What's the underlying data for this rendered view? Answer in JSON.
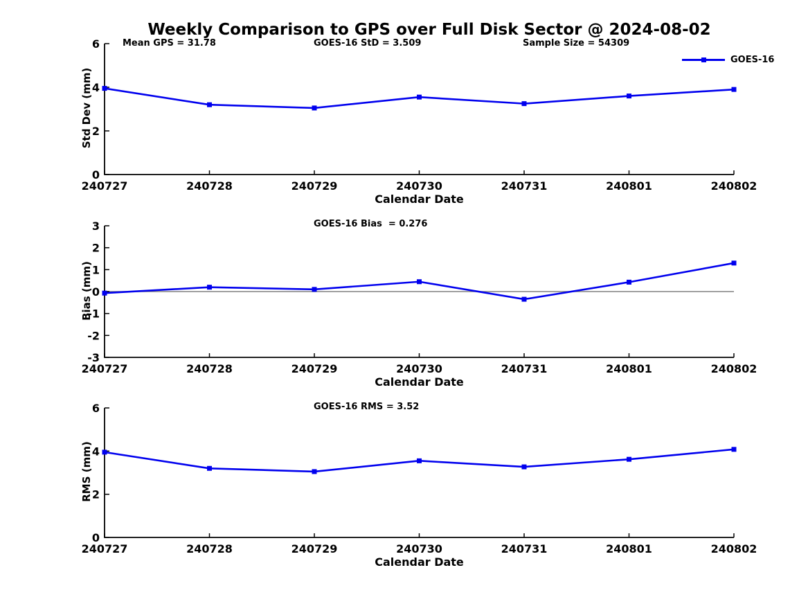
{
  "figure": {
    "title": "Weekly Comparison to GPS over Full Disk Sector @ 2024-08-02"
  },
  "legend": {
    "label": "GOES-16",
    "marker": "filled-square",
    "position": "top-right-of-first-plot"
  },
  "colors": {
    "series_line": "#0000EE",
    "zero_line": "#808080",
    "axis": "#000000",
    "text": "#000000",
    "background": "#FFFFFF"
  },
  "chart_data": [
    {
      "type": "line",
      "id": "std-dev-plot",
      "categories": [
        "240727",
        "240728",
        "240729",
        "240730",
        "240731",
        "240801",
        "240802"
      ],
      "series": [
        {
          "name": "GOES-16",
          "color": "#0000EE",
          "marker": "square",
          "values": [
            3.95,
            3.2,
            3.05,
            3.55,
            3.25,
            3.6,
            3.9
          ]
        }
      ],
      "xlabel": "Calendar Date",
      "ylabel": "Std Dev (mm)",
      "ylim": [
        0,
        6
      ],
      "yticks": [
        0,
        2,
        4,
        6
      ],
      "grid": false,
      "zero_line": false,
      "annotations": [
        {
          "text": "Mean GPS = 31.78"
        },
        {
          "text": "GOES-16 StD = 3.509"
        },
        {
          "text": "Sample Size = 54309"
        }
      ]
    },
    {
      "type": "line",
      "id": "bias-plot",
      "categories": [
        "240727",
        "240728",
        "240729",
        "240730",
        "240731",
        "240801",
        "240802"
      ],
      "series": [
        {
          "name": "GOES-16",
          "color": "#0000EE",
          "marker": "square",
          "values": [
            -0.07,
            0.2,
            0.1,
            0.45,
            -0.35,
            0.43,
            1.3
          ]
        }
      ],
      "xlabel": "Calendar Date",
      "ylabel": "Bias (mm)",
      "ylim": [
        -3,
        3
      ],
      "yticks": [
        -3,
        -2,
        -1,
        0,
        1,
        2,
        3
      ],
      "grid": false,
      "zero_line": true,
      "annotations": [
        {
          "text": "GOES-16 Bias  = 0.276"
        }
      ]
    },
    {
      "type": "line",
      "id": "rms-plot",
      "categories": [
        "240727",
        "240728",
        "240729",
        "240730",
        "240731",
        "240801",
        "240802"
      ],
      "series": [
        {
          "name": "GOES-16",
          "color": "#0000EE",
          "marker": "square",
          "values": [
            3.95,
            3.2,
            3.05,
            3.55,
            3.27,
            3.62,
            4.08
          ]
        }
      ],
      "xlabel": "Calendar Date",
      "ylabel": "RMS (mm)",
      "ylim": [
        0,
        6
      ],
      "yticks": [
        0,
        2,
        4,
        6
      ],
      "grid": false,
      "zero_line": false,
      "annotations": [
        {
          "text": "GOES-16 RMS = 3.52"
        }
      ]
    }
  ]
}
